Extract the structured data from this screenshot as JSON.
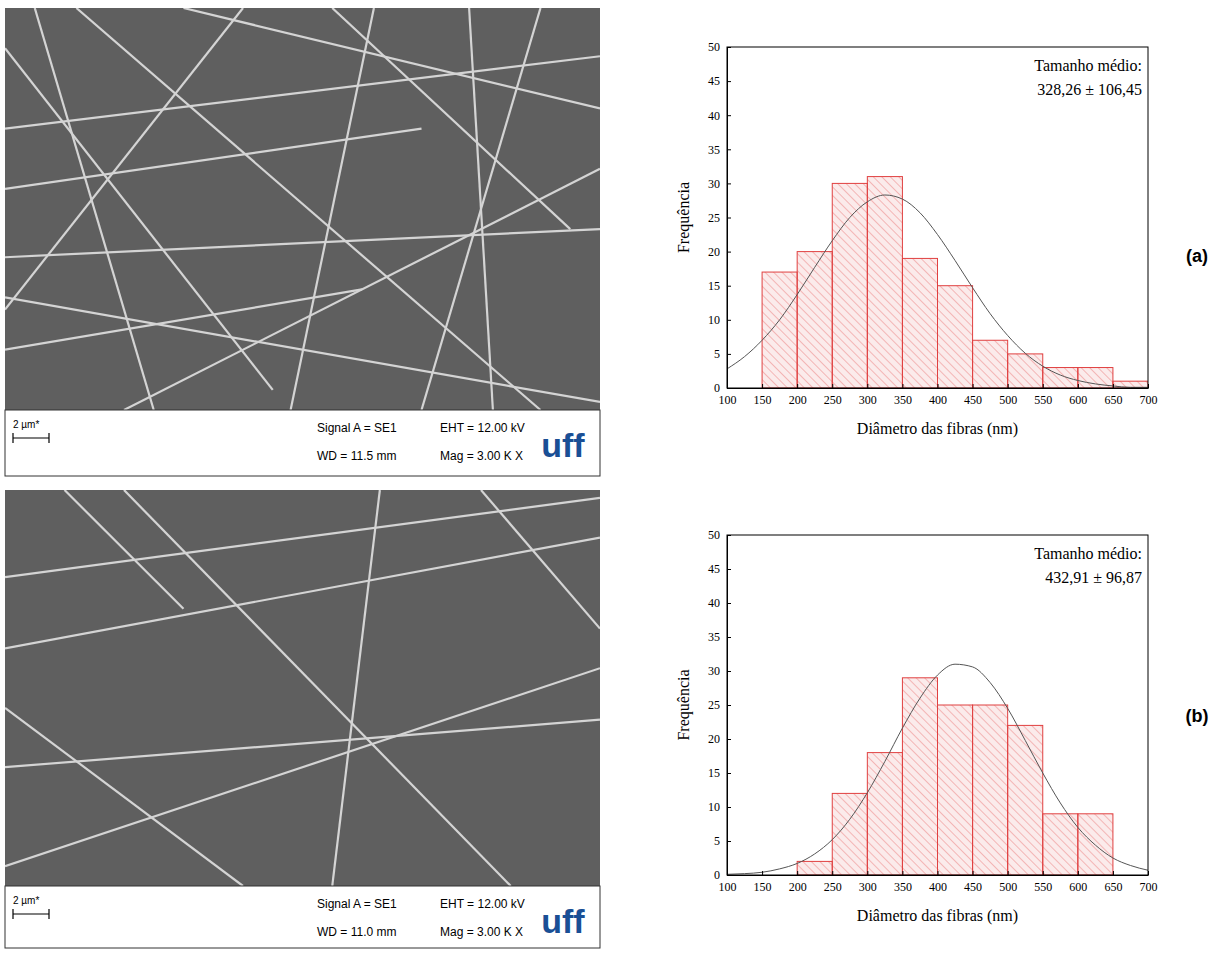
{
  "chart_data": [
    {
      "type": "histogram",
      "xlabel": "Diâmetro das fibras (nm)",
      "ylabel": "Frequência",
      "annotations": [
        "Tamanho médio:",
        "328,26 ± 106,45"
      ],
      "bins": [
        150,
        200,
        250,
        300,
        350,
        400,
        450,
        500,
        550,
        600,
        650,
        700
      ],
      "values": [
        17,
        20,
        30,
        31,
        19,
        15,
        7,
        5,
        3,
        3,
        1
      ],
      "color": "#e04040",
      "xlim": [
        100,
        700
      ],
      "xticks": [
        100,
        150,
        200,
        250,
        300,
        350,
        400,
        450,
        500,
        550,
        600,
        650,
        700
      ],
      "ylim": [
        0,
        50
      ],
      "yticks": [
        0,
        5,
        10,
        15,
        20,
        25,
        30,
        35,
        40,
        45,
        50
      ],
      "curve": {
        "type": "line",
        "color": "#555555",
        "x": [
          100,
          125,
          150,
          175,
          200,
          225,
          250,
          275,
          300,
          325,
          350,
          375,
          400,
          425,
          450,
          475,
          500,
          525,
          550,
          575,
          600,
          625,
          650,
          675,
          700
        ],
        "values": [
          2.8,
          4.6,
          7.0,
          10.0,
          13.7,
          17.7,
          21.6,
          25.0,
          27.3,
          28.3,
          27.7,
          25.7,
          22.5,
          18.7,
          14.7,
          10.9,
          7.7,
          5.1,
          3.2,
          1.9,
          1.1,
          0.6,
          0.3,
          0.1,
          0.1
        ]
      }
    },
    {
      "type": "histogram",
      "xlabel": "Diâmetro das fibras (nm)",
      "ylabel": "Frequência",
      "annotations": [
        "Tamanho médio:",
        "432,91 ± 96,87"
      ],
      "bins": [
        200,
        250,
        300,
        350,
        400,
        450,
        500,
        550,
        600,
        650
      ],
      "values": [
        2,
        12,
        18,
        29,
        25,
        25,
        22,
        9,
        9
      ],
      "color": "#e04040",
      "xlim": [
        100,
        700
      ],
      "xticks": [
        100,
        150,
        200,
        250,
        300,
        350,
        400,
        450,
        500,
        550,
        600,
        650,
        700
      ],
      "ylim": [
        0,
        50
      ],
      "yticks": [
        0,
        5,
        10,
        15,
        20,
        25,
        30,
        35,
        40,
        45,
        50
      ],
      "curve": {
        "type": "line",
        "color": "#555555",
        "x": [
          100,
          125,
          150,
          175,
          200,
          225,
          250,
          275,
          300,
          325,
          350,
          375,
          400,
          425,
          450,
          475,
          500,
          525,
          550,
          575,
          600,
          625,
          650,
          675,
          700
        ],
        "values": [
          0.1,
          0.2,
          0.4,
          0.9,
          1.7,
          3.1,
          5.2,
          8.2,
          12.1,
          16.7,
          21.6,
          26.0,
          29.4,
          31.0,
          30.6,
          28.3,
          24.5,
          19.8,
          15.0,
          10.6,
          7.0,
          4.4,
          2.5,
          1.4,
          0.7
        ]
      }
    }
  ],
  "sem_images": [
    {
      "scale_bar": "2 µm*",
      "signal": "Signal A = SE1",
      "eht": "EHT = 12.00 kV",
      "wd": "WD = 11.5 mm",
      "mag": "Mag = 3.00 K X",
      "logo": "uff"
    },
    {
      "scale_bar": "2 µm*",
      "signal": "Signal A = SE1",
      "eht": "EHT = 12.00 kV",
      "wd": "WD = 11.0 mm",
      "mag": "Mag = 3.00 K X",
      "logo": "uff"
    }
  ],
  "panel_labels": [
    "(a)",
    "(b)"
  ]
}
